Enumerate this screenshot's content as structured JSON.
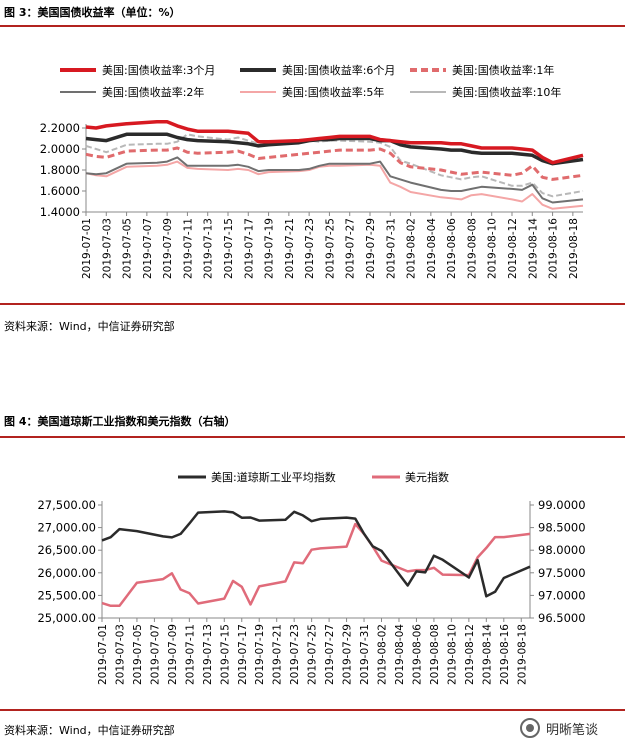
{
  "figure3": {
    "title": "图 3：美国国债收益率（单位：%）",
    "source": "资料来源：Wind，中信证券研究部"
  },
  "figure4": {
    "title": "图 4：美国道琼斯工业指数和美元指数（右轴）",
    "source": "资料来源：Wind，中信证券研究部"
  },
  "watermark": {
    "text": "明晰笔谈",
    "icon": "wechat-logo-icon"
  },
  "colors": {
    "rule": "#b2231f",
    "y3m": "#d71921",
    "y6m": "#2b2b2b",
    "y1y": "#e06b6d",
    "y2y": "#707070",
    "y5y": "#f4a6a6",
    "y10y": "#b8b8b8",
    "dow": "#2b2b2b",
    "dxy": "#e06b7a"
  },
  "chart_data": [
    {
      "type": "line",
      "title": "",
      "dates": [
        "2019-07-01",
        "2019-07-02",
        "2019-07-03",
        "2019-07-05",
        "2019-07-08",
        "2019-07-09",
        "2019-07-10",
        "2019-07-11",
        "2019-07-12",
        "2019-07-15",
        "2019-07-16",
        "2019-07-17",
        "2019-07-18",
        "2019-07-19",
        "2019-07-22",
        "2019-07-23",
        "2019-07-24",
        "2019-07-25",
        "2019-07-26",
        "2019-07-29",
        "2019-07-30",
        "2019-07-31",
        "2019-08-01",
        "2019-08-02",
        "2019-08-05",
        "2019-08-06",
        "2019-08-07",
        "2019-08-08",
        "2019-08-09",
        "2019-08-12",
        "2019-08-13",
        "2019-08-14",
        "2019-08-15",
        "2019-08-16",
        "2019-08-19"
      ],
      "x_tick_labels": [
        "2019-07-01",
        "2019-07-03",
        "2019-07-05",
        "2019-07-07",
        "2019-07-09",
        "2019-07-11",
        "2019-07-13",
        "2019-07-15",
        "2019-07-17",
        "2019-07-19",
        "2019-07-21",
        "2019-07-23",
        "2019-07-25",
        "2019-07-27",
        "2019-07-29",
        "2019-07-31",
        "2019-08-02",
        "2019-08-04",
        "2019-08-06",
        "2019-08-08",
        "2019-08-10",
        "2019-08-12",
        "2019-08-14",
        "2019-08-16",
        "2019-08-18"
      ],
      "y_tick_labels": [
        "2.2000",
        "2.0000",
        "1.8000",
        "1.6000",
        "1.4000"
      ],
      "ylim": [
        1.4,
        2.2
      ],
      "grid": false,
      "legend": "top",
      "series": [
        {
          "name": "美国:国债收益率:3个月",
          "values": [
            2.21,
            2.2,
            2.22,
            2.24,
            2.26,
            2.26,
            2.22,
            2.19,
            2.17,
            2.17,
            2.16,
            2.15,
            2.07,
            2.07,
            2.08,
            2.09,
            2.1,
            2.11,
            2.12,
            2.12,
            2.09,
            2.08,
            2.07,
            2.06,
            2.06,
            2.05,
            2.05,
            2.03,
            2.01,
            2.01,
            2.0,
            1.99,
            1.92,
            1.87,
            1.94
          ]
        },
        {
          "name": "美国:国债收益率:6个月",
          "values": [
            2.1,
            2.09,
            2.08,
            2.14,
            2.14,
            2.14,
            2.11,
            2.09,
            2.08,
            2.07,
            2.06,
            2.05,
            2.03,
            2.04,
            2.06,
            2.08,
            2.09,
            2.09,
            2.1,
            2.1,
            2.08,
            2.08,
            2.04,
            2.02,
            2.0,
            1.99,
            1.99,
            1.97,
            1.96,
            1.96,
            1.95,
            1.94,
            1.89,
            1.86,
            1.9
          ]
        },
        {
          "name": "美国:国债收益率:1年",
          "values": [
            1.95,
            1.93,
            1.92,
            1.98,
            1.99,
            1.99,
            2.01,
            1.97,
            1.96,
            1.97,
            1.98,
            1.95,
            1.91,
            1.92,
            1.95,
            1.96,
            1.97,
            1.98,
            1.99,
            1.99,
            2.0,
            1.96,
            1.87,
            1.83,
            1.8,
            1.78,
            1.76,
            1.77,
            1.78,
            1.75,
            1.77,
            1.84,
            1.73,
            1.71,
            1.75
          ]
        },
        {
          "name": "美国:国债收益率:2年",
          "values": [
            1.77,
            1.76,
            1.77,
            1.86,
            1.87,
            1.88,
            1.92,
            1.84,
            1.84,
            1.84,
            1.85,
            1.83,
            1.79,
            1.8,
            1.8,
            1.81,
            1.84,
            1.86,
            1.86,
            1.86,
            1.88,
            1.74,
            1.71,
            1.68,
            1.61,
            1.6,
            1.6,
            1.62,
            1.64,
            1.62,
            1.61,
            1.66,
            1.53,
            1.49,
            1.52
          ]
        },
        {
          "name": "美国:国债收益率:5年",
          "values": [
            1.77,
            1.75,
            1.74,
            1.83,
            1.84,
            1.85,
            1.88,
            1.82,
            1.81,
            1.8,
            1.81,
            1.8,
            1.76,
            1.78,
            1.79,
            1.8,
            1.83,
            1.84,
            1.84,
            1.85,
            1.84,
            1.68,
            1.64,
            1.59,
            1.54,
            1.53,
            1.52,
            1.56,
            1.57,
            1.52,
            1.5,
            1.57,
            1.47,
            1.43,
            1.46
          ]
        },
        {
          "name": "美国:国债收益率:10年",
          "values": [
            2.03,
            2.0,
            1.97,
            2.04,
            2.05,
            2.05,
            2.07,
            2.14,
            2.12,
            2.09,
            2.11,
            2.08,
            2.05,
            2.05,
            2.06,
            2.08,
            2.07,
            2.08,
            2.08,
            2.07,
            2.06,
            2.02,
            1.89,
            1.86,
            1.75,
            1.73,
            1.71,
            1.73,
            1.74,
            1.65,
            1.65,
            1.68,
            1.58,
            1.55,
            1.6
          ]
        }
      ]
    },
    {
      "type": "line",
      "title": "",
      "dates": [
        "2019-07-01",
        "2019-07-02",
        "2019-07-03",
        "2019-07-05",
        "2019-07-08",
        "2019-07-09",
        "2019-07-10",
        "2019-07-11",
        "2019-07-12",
        "2019-07-15",
        "2019-07-16",
        "2019-07-17",
        "2019-07-18",
        "2019-07-19",
        "2019-07-22",
        "2019-07-23",
        "2019-07-24",
        "2019-07-25",
        "2019-07-26",
        "2019-07-29",
        "2019-07-30",
        "2019-07-31",
        "2019-08-01",
        "2019-08-02",
        "2019-08-05",
        "2019-08-06",
        "2019-08-07",
        "2019-08-08",
        "2019-08-09",
        "2019-08-12",
        "2019-08-13",
        "2019-08-14",
        "2019-08-15",
        "2019-08-16",
        "2019-08-19"
      ],
      "x_tick_labels": [
        "2019-07-01",
        "2019-07-03",
        "2019-07-05",
        "2019-07-07",
        "2019-07-09",
        "2019-07-11",
        "2019-07-13",
        "2019-07-15",
        "2019-07-17",
        "2019-07-19",
        "2019-07-21",
        "2019-07-23",
        "2019-07-25",
        "2019-07-27",
        "2019-07-29",
        "2019-07-31",
        "2019-08-02",
        "2019-08-04",
        "2019-08-06",
        "2019-08-08",
        "2019-08-10",
        "2019-08-12",
        "2019-08-14",
        "2019-08-16",
        "2019-08-18"
      ],
      "y_left_tick_labels": [
        "27,500.00",
        "27,000.00",
        "26,500.00",
        "26,000.00",
        "25,500.00",
        "25,000.00"
      ],
      "y_right_tick_labels": [
        "99.0000",
        "98.5000",
        "98.0000",
        "97.5000",
        "97.0000",
        "96.5000"
      ],
      "ylim_left": [
        25000,
        27500
      ],
      "ylim_right": [
        96.5,
        99.0
      ],
      "grid": false,
      "legend": "top",
      "series": [
        {
          "name": "美国:道琼斯工业平均指数",
          "axis": "left",
          "values": [
            26717,
            26787,
            26966,
            26922,
            26806,
            26783,
            26860,
            27088,
            27332,
            27359,
            27336,
            27220,
            27223,
            27154,
            27172,
            27350,
            27270,
            27141,
            27193,
            27222,
            27199,
            26864,
            26583,
            26485,
            25718,
            26030,
            26008,
            26378,
            26287,
            25897,
            26280,
            25479,
            25580,
            25886,
            26136
          ]
        },
        {
          "name": "美元指数",
          "axis": "right",
          "values": [
            96.83,
            96.77,
            96.77,
            97.28,
            97.36,
            97.49,
            97.13,
            97.05,
            96.82,
            96.93,
            97.32,
            97.19,
            96.8,
            97.2,
            97.31,
            97.73,
            97.71,
            98.01,
            98.04,
            98.08,
            98.58,
            98.36,
            98.08,
            97.77,
            97.53,
            97.56,
            97.56,
            97.61,
            97.46,
            97.45,
            97.84,
            98.05,
            98.29,
            98.29,
            98.36
          ]
        }
      ]
    }
  ]
}
